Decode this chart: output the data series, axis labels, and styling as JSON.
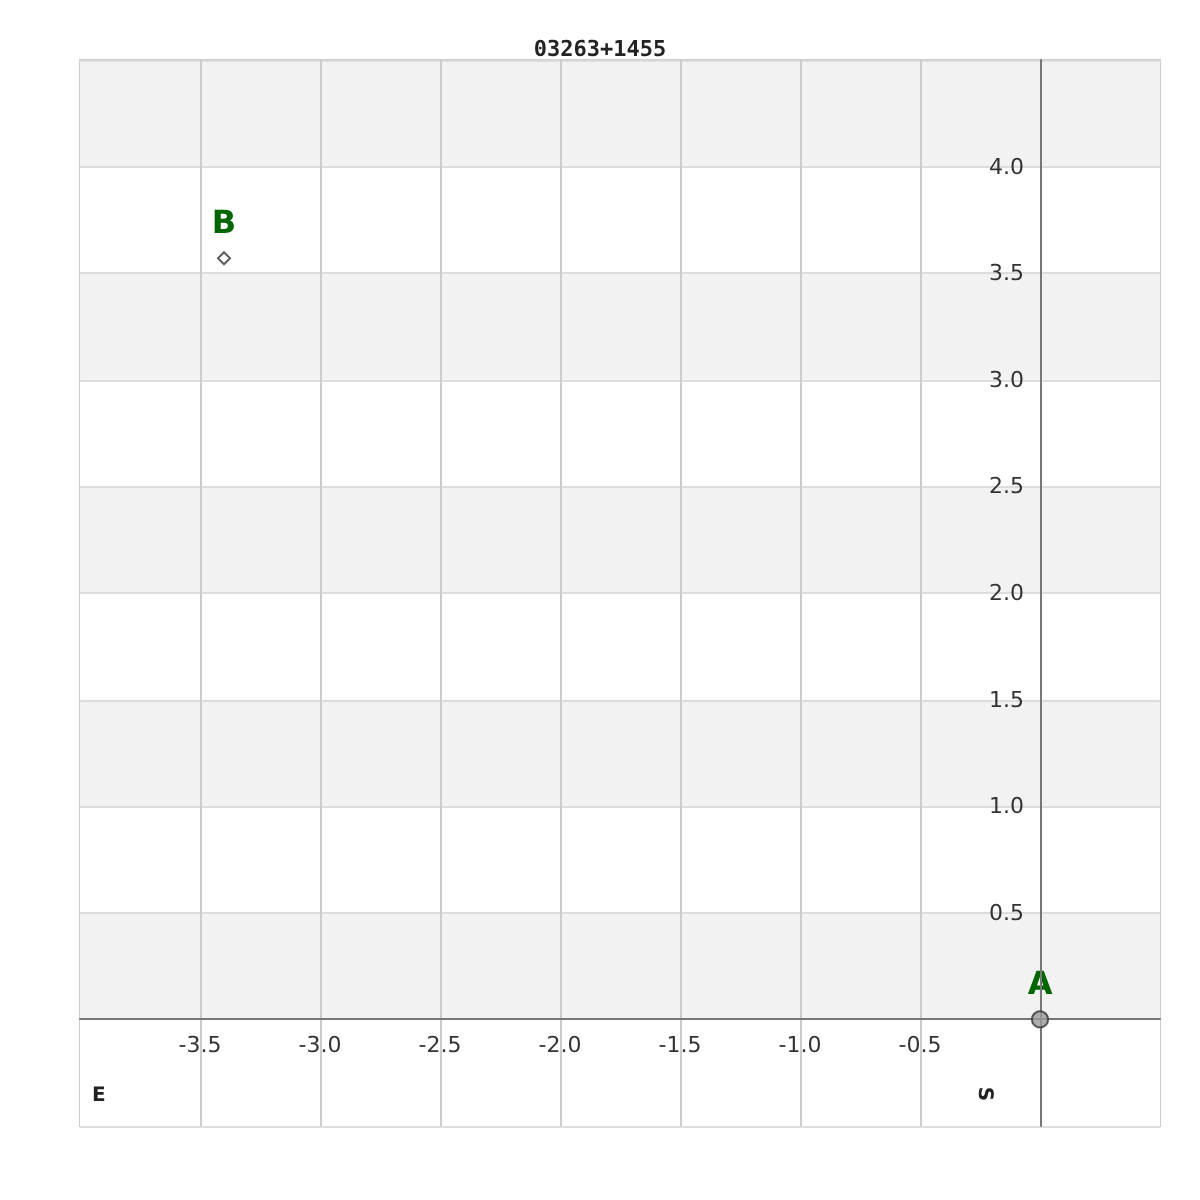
{
  "chart_data": {
    "type": "scatter",
    "title": "03263+1455",
    "series": [
      {
        "x": [
          0
        ],
        "values": [
          0
        ],
        "color": "#999999",
        "marker": "circle"
      },
      {
        "x": [
          -3.4
        ],
        "values": [
          3.57
        ],
        "color": "#ffffff",
        "marker": "diamond"
      }
    ],
    "xlim": [
      -4,
      0.5
    ],
    "ylim": [
      -0.5,
      4.5
    ],
    "xticks": [
      -3.5,
      {
        "value": -3,
        "label": "-3.0"
      },
      -2.5,
      {
        "value": -2,
        "label": "-2.0"
      },
      -1.5,
      {
        "value": -1,
        "label": "-1.0"
      },
      -0.5
    ],
    "yticks": [
      {
        "value": -0.5,
        "label": null
      },
      {
        "value": 0,
        "label": null
      },
      0.5,
      {
        "value": 1,
        "label": "1.0"
      },
      1.5,
      {
        "value": 2,
        "label": "2.0"
      },
      2.5,
      {
        "value": 3,
        "label": "3.0"
      },
      3.5,
      {
        "value": 4,
        "label": "4.0"
      },
      {
        "value": 4.5,
        "label": null
      }
    ],
    "annotations": [
      {
        "text": "A",
        "x": 0,
        "y": 0
      },
      {
        "text": "B",
        "x": -3.4,
        "y": 3.57
      },
      "E",
      "S"
    ],
    "grid": true
  }
}
